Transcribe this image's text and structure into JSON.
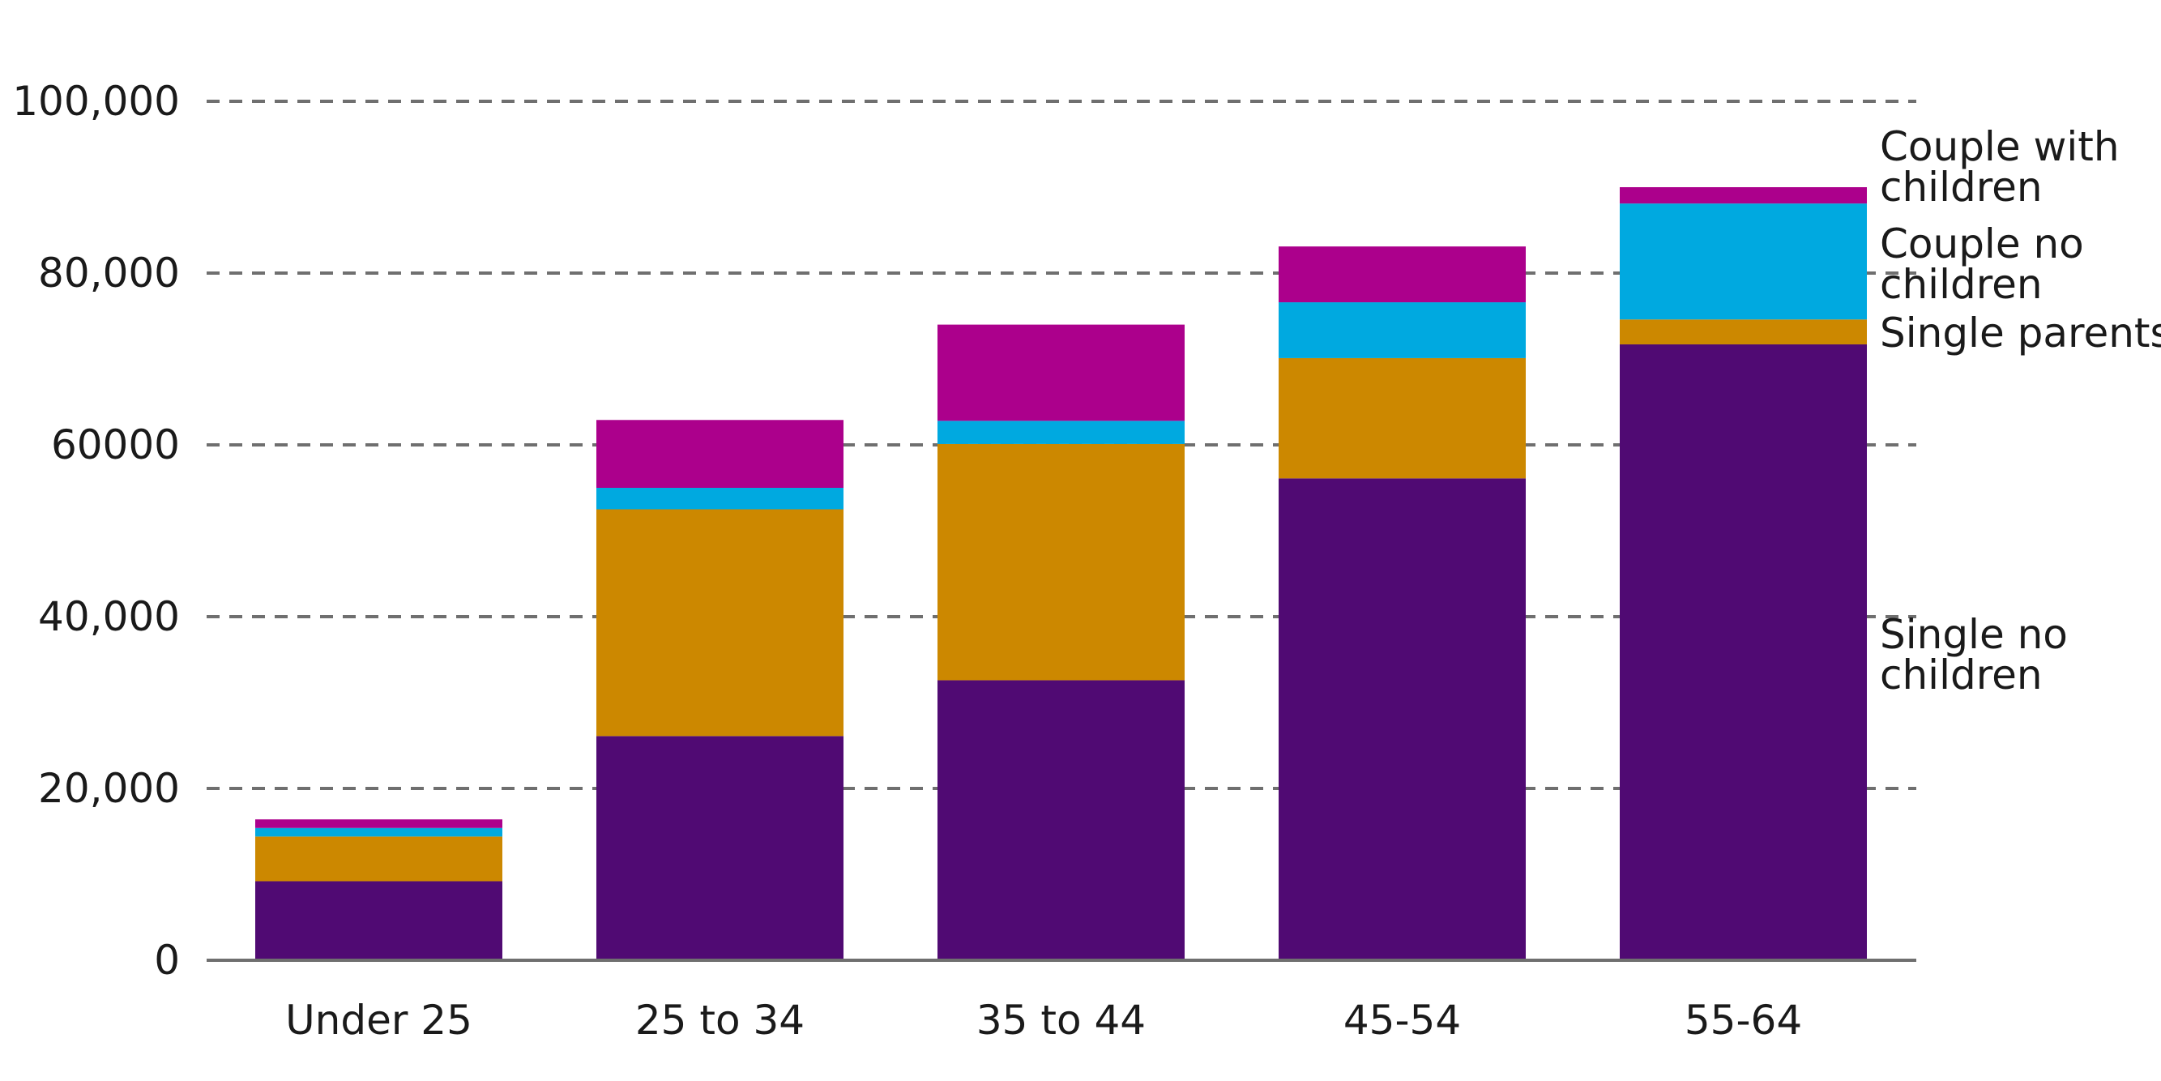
{
  "chart_data": {
    "type": "bar",
    "stacked": true,
    "categories": [
      "Under 25",
      "25 to 34",
      "35 to 44",
      "45-54",
      "55-64"
    ],
    "series": [
      {
        "name": "Single no children",
        "color": "#500a73",
        "values": [
          9200,
          26100,
          32600,
          56100,
          71700
        ]
      },
      {
        "name": "Single parents",
        "color": "#cc8800",
        "values": [
          5200,
          26400,
          27500,
          14000,
          2900
        ]
      },
      {
        "name": "Couple no children",
        "color": "#00a9e0",
        "values": [
          1000,
          2500,
          2700,
          6500,
          13500
        ]
      },
      {
        "name": "Couple with children",
        "color": "#ac008c",
        "values": [
          1000,
          7900,
          11200,
          6500,
          1900
        ]
      }
    ],
    "yticks": [
      {
        "value": 0,
        "label": "0"
      },
      {
        "value": 20000,
        "label": "20,000"
      },
      {
        "value": 40000,
        "label": "40,000"
      },
      {
        "value": 60000,
        "label": "60000"
      },
      {
        "value": 80000,
        "label": "80,000"
      },
      {
        "value": 100000,
        "label": "100,000"
      }
    ],
    "ylim": [
      0,
      100000
    ],
    "grid": true,
    "legend": [
      {
        "series": "Couple with children",
        "lines": [
          "Couple with",
          "children"
        ]
      },
      {
        "series": "Couple no children",
        "lines": [
          "Couple no",
          "children"
        ]
      },
      {
        "series": "Single parents",
        "lines": [
          "Single parents"
        ]
      },
      {
        "series": "Single no children",
        "lines": [
          "Single no",
          "children"
        ]
      }
    ],
    "legend_position": "right"
  }
}
